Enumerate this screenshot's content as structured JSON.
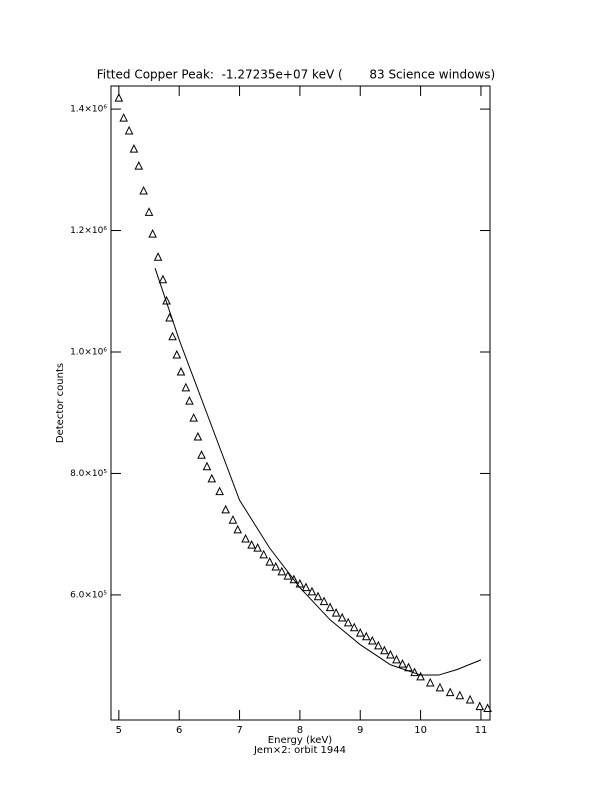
{
  "chart_data": {
    "type": "scatter",
    "title": "Fitted Copper Peak:  -1.27235e+07 keV (       83 Science windows)",
    "x_label": "Energy (keV)",
    "y_label": "Detector counts",
    "subtitle": "Jem×2: orbit 1944",
    "xlim": [
      4.87,
      11.15
    ],
    "ylim": [
      394000,
      1438000
    ],
    "xticks": [
      5,
      6,
      7,
      8,
      9,
      10,
      11
    ],
    "yticks": [
      {
        "value": 600000,
        "label": "6.0×10⁵"
      },
      {
        "value": 800000,
        "label": "8.0×10⁵"
      },
      {
        "value": 1000000,
        "label": "1.0×10⁶"
      },
      {
        "value": 1200000,
        "label": "1.2×10⁶"
      },
      {
        "value": 1400000,
        "label": "1.4×10⁶"
      }
    ],
    "series": [
      {
        "marker": "triangle",
        "color": "#000000",
        "x": [
          5.0,
          5.08,
          5.17,
          5.25,
          5.33,
          5.41,
          5.5,
          5.56,
          5.65,
          5.73,
          5.79,
          5.84,
          5.89,
          5.96,
          6.03,
          6.11,
          6.17,
          6.24,
          6.31,
          6.37,
          6.46,
          6.54,
          6.67,
          6.77,
          6.89,
          6.97,
          7.1,
          7.2,
          7.3,
          7.4,
          7.5,
          7.6,
          7.7,
          7.8,
          7.9,
          8.0,
          8.1,
          8.2,
          8.3,
          8.4,
          8.5,
          8.6,
          8.7,
          8.8,
          8.9,
          9.0,
          9.1,
          9.2,
          9.3,
          9.4,
          9.5,
          9.6,
          9.7,
          9.8,
          9.9,
          10.0,
          10.16,
          10.32,
          10.49,
          10.65,
          10.82,
          10.98,
          11.11
        ],
        "values": [
          1418000,
          1385000,
          1364000,
          1334000,
          1306000,
          1265000,
          1230000,
          1194000,
          1156000,
          1119000,
          1084000,
          1056000,
          1025000,
          995000,
          967000,
          941000,
          919000,
          891000,
          860000,
          830000,
          811000,
          791000,
          770000,
          740000,
          723000,
          707000,
          692000,
          682000,
          677000,
          666000,
          654000,
          646000,
          638000,
          631000,
          625000,
          618000,
          612000,
          605000,
          597000,
          589000,
          579000,
          570000,
          562000,
          554000,
          546000,
          537000,
          531000,
          524000,
          516000,
          508000,
          501000,
          493000,
          486000,
          480000,
          472000,
          465000,
          455000,
          447000,
          439000,
          434000,
          427000,
          416000,
          413000
        ]
      },
      {
        "marker": "line",
        "color": "#000000",
        "x": [
          5.6,
          6.0,
          6.5,
          7.0,
          7.5,
          8.0,
          8.5,
          9.0,
          9.5,
          10.0,
          10.3,
          10.6,
          11.0
        ],
        "values": [
          1138000,
          1020000,
          888000,
          756000,
          677000,
          612000,
          559000,
          518000,
          485000,
          468000,
          468000,
          477000,
          493000
        ]
      }
    ]
  }
}
